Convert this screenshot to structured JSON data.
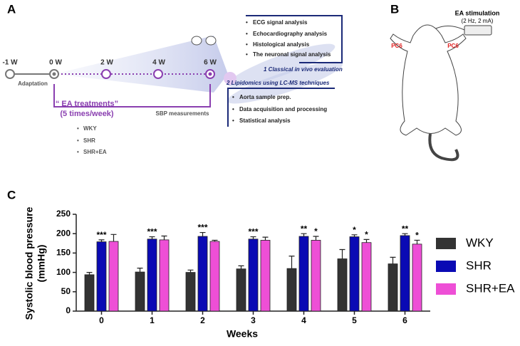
{
  "panel_a": {
    "label": "A",
    "timeline": [
      "-1 W",
      "0 W",
      "2 W",
      "4 W",
      "6 W"
    ],
    "adaptation": "Adaptation",
    "treatment": "“ EA treatments”",
    "treatment_freq": "(5 times/week)",
    "sbp": "SBP measurements",
    "groups": [
      "WKY",
      "SHR",
      "SHR+EA"
    ],
    "classical_items": [
      "ECG signal analysis",
      "Echocardiography analysis",
      "Histological analysis",
      "The neuronal signal analysis"
    ],
    "classical_title": "1 Classical in vivo evaluation",
    "lipidomics_title": "2 Lipidomics using LC-MS techniques",
    "lipidomics_items": [
      "Aorta sample prep.",
      "Data acquisition and processing",
      "Statistical analysis"
    ]
  },
  "panel_b": {
    "label": "B",
    "stimulation": "EA stimulation",
    "params": "(2 Hz, 2 mA)",
    "point_left": "PC6",
    "point_right": "PC6"
  },
  "chart_data": {
    "type": "bar",
    "panel_label": "C",
    "xlabel": "Weeks",
    "ylabel": [
      "Systolic blood pressure",
      "(mmHg)"
    ],
    "categories": [
      "0",
      "1",
      "2",
      "3",
      "4",
      "5",
      "6"
    ],
    "series": [
      {
        "name": "WKY",
        "color": "#333333",
        "values": [
          94,
          101,
          100,
          109,
          110,
          135,
          122
        ],
        "errors": [
          6,
          10,
          6,
          8,
          32,
          24,
          17
        ]
      },
      {
        "name": "SHR",
        "color": "#0a0ab4",
        "values": [
          179,
          186,
          193,
          186,
          193,
          192,
          195
        ],
        "errors": [
          5,
          6,
          10,
          6,
          7,
          5,
          5
        ],
        "significance": [
          "***",
          "***",
          "***",
          "***",
          "**",
          "*",
          "**"
        ]
      },
      {
        "name": "SHR+EA",
        "color": "#ee4fd6",
        "values": [
          180,
          184,
          180,
          183,
          183,
          177,
          173
        ],
        "errors": [
          18,
          10,
          3,
          8,
          10,
          8,
          10
        ],
        "significance": [
          null,
          null,
          null,
          null,
          "*",
          "*",
          "*"
        ]
      }
    ],
    "ylim": [
      0,
      250
    ],
    "yticks": [
      0,
      50,
      100,
      150,
      200,
      250
    ],
    "legend": "right"
  }
}
